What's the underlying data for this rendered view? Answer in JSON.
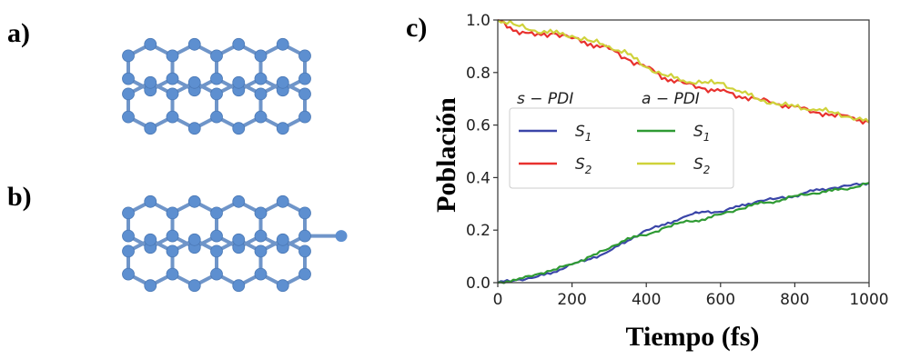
{
  "panel_labels": {
    "a": "a)",
    "b": "b)",
    "c": "c)"
  },
  "colors": {
    "bond": "#6f95c9",
    "atom": "#5d8fd0",
    "oxygen": "#cc2a2a",
    "s_pdi_S1": "#3a45a8",
    "s_pdi_S2": "#e8312e",
    "a_pdi_S1": "#2f9a33",
    "a_pdi_S2": "#cfd23a"
  },
  "chart_data": {
    "type": "line",
    "title": "",
    "xlabel": "Tiempo (fs)",
    "ylabel": "Población",
    "xlim": [
      0,
      1000
    ],
    "ylim": [
      0.0,
      1.0
    ],
    "xticks": [
      "0",
      "200",
      "400",
      "600",
      "800",
      "1000"
    ],
    "yticks": [
      "0.0",
      "0.2",
      "0.4",
      "0.6",
      "0.8",
      "1.0"
    ],
    "grid": false,
    "legend_placement": "center-left",
    "legend_groups": [
      "s − PDI",
      "a − PDI"
    ],
    "series": [
      {
        "name": "S1",
        "group": "s − PDI",
        "color": "#3a45a8",
        "x": [
          0,
          50,
          100,
          150,
          200,
          250,
          300,
          350,
          400,
          450,
          500,
          550,
          600,
          650,
          700,
          750,
          800,
          850,
          900,
          950,
          1000
        ],
        "y": [
          0.0,
          0.01,
          0.02,
          0.04,
          0.07,
          0.09,
          0.12,
          0.16,
          0.2,
          0.22,
          0.25,
          0.27,
          0.27,
          0.29,
          0.31,
          0.32,
          0.33,
          0.35,
          0.36,
          0.37,
          0.38
        ]
      },
      {
        "name": "S2",
        "group": "s − PDI",
        "color": "#e8312e",
        "x": [
          0,
          50,
          100,
          150,
          200,
          250,
          300,
          350,
          400,
          450,
          500,
          550,
          600,
          650,
          700,
          750,
          800,
          850,
          900,
          950,
          1000
        ],
        "y": [
          1.0,
          0.96,
          0.94,
          0.95,
          0.93,
          0.91,
          0.89,
          0.85,
          0.82,
          0.78,
          0.76,
          0.74,
          0.73,
          0.71,
          0.7,
          0.68,
          0.67,
          0.65,
          0.64,
          0.63,
          0.61
        ]
      },
      {
        "name": "S1",
        "group": "a − PDI",
        "color": "#2f9a33",
        "x": [
          0,
          50,
          100,
          150,
          200,
          250,
          300,
          350,
          400,
          450,
          500,
          550,
          600,
          650,
          700,
          750,
          800,
          850,
          900,
          950,
          1000
        ],
        "y": [
          0.0,
          0.01,
          0.03,
          0.05,
          0.07,
          0.1,
          0.13,
          0.17,
          0.18,
          0.21,
          0.23,
          0.24,
          0.26,
          0.28,
          0.3,
          0.31,
          0.33,
          0.34,
          0.35,
          0.36,
          0.38
        ]
      },
      {
        "name": "S2",
        "group": "a − PDI",
        "color": "#cfd23a",
        "x": [
          0,
          50,
          100,
          150,
          200,
          250,
          300,
          350,
          400,
          450,
          500,
          550,
          600,
          650,
          700,
          750,
          800,
          850,
          900,
          950,
          1000
        ],
        "y": [
          1.0,
          0.98,
          0.96,
          0.95,
          0.94,
          0.92,
          0.9,
          0.87,
          0.82,
          0.79,
          0.77,
          0.76,
          0.76,
          0.73,
          0.7,
          0.68,
          0.67,
          0.66,
          0.65,
          0.63,
          0.61
        ]
      }
    ]
  }
}
